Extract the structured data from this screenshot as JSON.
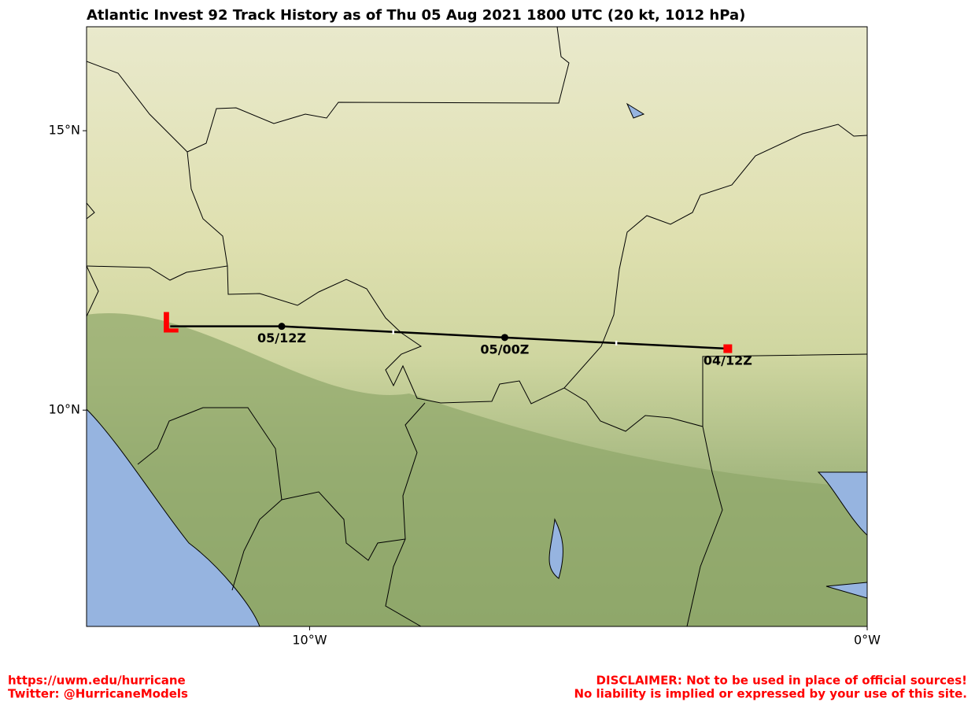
{
  "chart_data": {
    "type": "track",
    "title": "Atlantic Invest 92 Track History as of Thu 05 Aug 2021 1800 UTC (20 kt, 1012 hPa)",
    "xlim": [
      -14,
      0
    ],
    "ylim": [
      6.13,
      16.86
    ],
    "xticks": [
      {
        "value": -10,
        "label": "10°W"
      },
      {
        "value": 0,
        "label": "0°W"
      }
    ],
    "yticks": [
      {
        "value": 10,
        "label": "10°N"
      },
      {
        "value": 15,
        "label": "15°N"
      }
    ],
    "series": [
      {
        "color": "#000000",
        "x": [
          -2.5,
          -4.5,
          -6.5,
          -8.5,
          -10.5,
          -12.5
        ],
        "y": [
          11.1,
          11.2,
          11.3,
          11.4,
          11.5,
          11.5
        ],
        "labels": [
          "04/12Z",
          null,
          "05/00Z",
          null,
          "05/12Z",
          null
        ]
      }
    ],
    "current_marker": "L",
    "footer_left": [
      "https://uwm.edu/hurricane",
      "Twitter: @HurricaneModels"
    ],
    "footer_right": [
      "DISCLAIMER: Not to be used in place of official sources!",
      "No liability is implied or expressed by your use of this site."
    ]
  }
}
